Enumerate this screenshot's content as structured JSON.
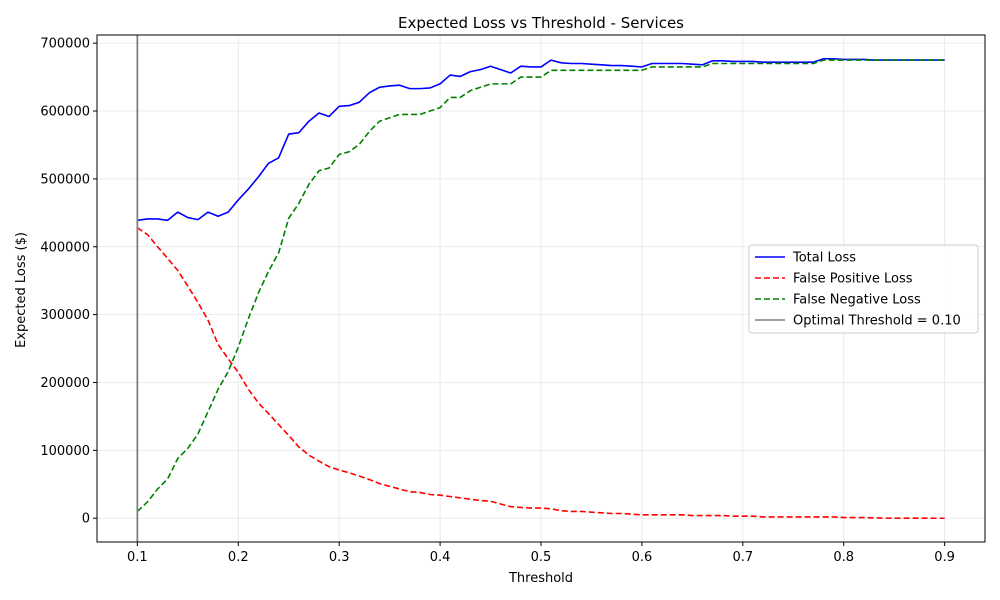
{
  "chart_data": {
    "type": "line",
    "title": "Expected Loss vs Threshold - Services",
    "xlabel": "Threshold",
    "ylabel": "Expected Loss ($)",
    "xlim": [
      0.06,
      0.94
    ],
    "ylim": [
      -35000,
      712000
    ],
    "xticks": [
      0.1,
      0.2,
      0.3,
      0.4,
      0.5,
      0.6,
      0.7,
      0.8,
      0.9
    ],
    "xtick_labels": [
      "0.1",
      "0.2",
      "0.3",
      "0.4",
      "0.5",
      "0.6",
      "0.7",
      "0.8",
      "0.9"
    ],
    "yticks": [
      0,
      100000,
      200000,
      300000,
      400000,
      500000,
      600000,
      700000
    ],
    "ytick_labels": [
      "0",
      "100000",
      "200000",
      "300000",
      "400000",
      "500000",
      "600000",
      "700000"
    ],
    "grid": true,
    "legend_position": "center-right",
    "x": [
      0.1,
      0.11,
      0.12,
      0.13,
      0.14,
      0.15,
      0.16,
      0.17,
      0.18,
      0.19,
      0.2,
      0.21,
      0.22,
      0.23,
      0.24,
      0.25,
      0.26,
      0.27,
      0.28,
      0.29,
      0.3,
      0.31,
      0.32,
      0.33,
      0.34,
      0.35,
      0.36,
      0.37,
      0.38,
      0.39,
      0.4,
      0.41,
      0.42,
      0.43,
      0.44,
      0.45,
      0.46,
      0.47,
      0.48,
      0.49,
      0.5,
      0.51,
      0.52,
      0.53,
      0.54,
      0.55,
      0.56,
      0.57,
      0.58,
      0.59,
      0.6,
      0.61,
      0.62,
      0.63,
      0.64,
      0.65,
      0.66,
      0.67,
      0.68,
      0.69,
      0.7,
      0.71,
      0.72,
      0.73,
      0.74,
      0.75,
      0.76,
      0.77,
      0.78,
      0.79,
      0.8,
      0.81,
      0.82,
      0.83,
      0.84,
      0.85,
      0.86,
      0.87,
      0.88,
      0.89,
      0.9
    ],
    "series": [
      {
        "name": "Total Loss",
        "color": "#0000ff",
        "dash": "solid",
        "values": [
          439000,
          441000,
          441000,
          439000,
          451000,
          443000,
          440000,
          451000,
          445000,
          451000,
          469000,
          485000,
          503000,
          523000,
          531000,
          566000,
          568000,
          585000,
          597000,
          592000,
          607000,
          608000,
          613000,
          627000,
          635000,
          637000,
          638000,
          633000,
          633000,
          634000,
          640000,
          653000,
          651000,
          658000,
          661000,
          666000,
          661000,
          656000,
          666000,
          665000,
          665000,
          675000,
          671000,
          670000,
          670000,
          669000,
          668000,
          667000,
          667000,
          666000,
          665000,
          670000,
          670000,
          670000,
          670000,
          669000,
          668000,
          674000,
          674000,
          673000,
          673000,
          673000,
          672000,
          672000,
          672000,
          672000,
          672000,
          672000,
          677000,
          677000,
          676000,
          676000,
          676000,
          675000,
          675000,
          675000,
          675000,
          675000,
          675000,
          675000,
          675000
        ]
      },
      {
        "name": "False Positive Loss",
        "color": "#ff0000",
        "dash": "dashed",
        "values": [
          428000,
          418000,
          400000,
          383000,
          365000,
          342000,
          318000,
          292000,
          256000,
          235000,
          215000,
          190000,
          170000,
          154000,
          138000,
          122000,
          105000,
          93000,
          84000,
          76000,
          71000,
          67000,
          62000,
          57000,
          51000,
          47000,
          43000,
          39000,
          38000,
          35000,
          34000,
          32000,
          30000,
          28000,
          26000,
          25000,
          21000,
          17000,
          16000,
          15000,
          15000,
          14000,
          11000,
          10000,
          10000,
          9000,
          8000,
          7000,
          7000,
          6000,
          5000,
          5000,
          5000,
          5000,
          5000,
          4000,
          4000,
          4000,
          4000,
          3000,
          3000,
          3000,
          2000,
          2000,
          2000,
          2000,
          2000,
          2000,
          2000,
          2000,
          1000,
          1000,
          1000,
          500,
          200,
          100,
          100,
          100,
          100,
          0,
          0
        ]
      },
      {
        "name": "False Negative Loss",
        "color": "#008000",
        "dash": "dashed",
        "values": [
          10000,
          24000,
          43000,
          58000,
          88000,
          103000,
          124000,
          157000,
          190000,
          216000,
          252000,
          294000,
          332000,
          364000,
          391000,
          442000,
          464000,
          492000,
          512000,
          516000,
          536000,
          540000,
          551000,
          570000,
          585000,
          590000,
          595000,
          595000,
          595000,
          600000,
          605000,
          620000,
          620000,
          630000,
          635000,
          640000,
          640000,
          640000,
          650000,
          650000,
          650000,
          660000,
          660000,
          660000,
          660000,
          660000,
          660000,
          660000,
          660000,
          660000,
          660000,
          665000,
          665000,
          665000,
          665000,
          665000,
          665000,
          670000,
          670000,
          670000,
          670000,
          670000,
          670000,
          670000,
          670000,
          670000,
          670000,
          670000,
          675000,
          675000,
          675000,
          675000,
          675000,
          675000,
          675000,
          675000,
          675000,
          675000,
          675000,
          675000,
          675000
        ]
      }
    ],
    "vline": {
      "name": "Optimal Threshold = 0.10",
      "x": 0.1,
      "color": "#808080"
    }
  }
}
